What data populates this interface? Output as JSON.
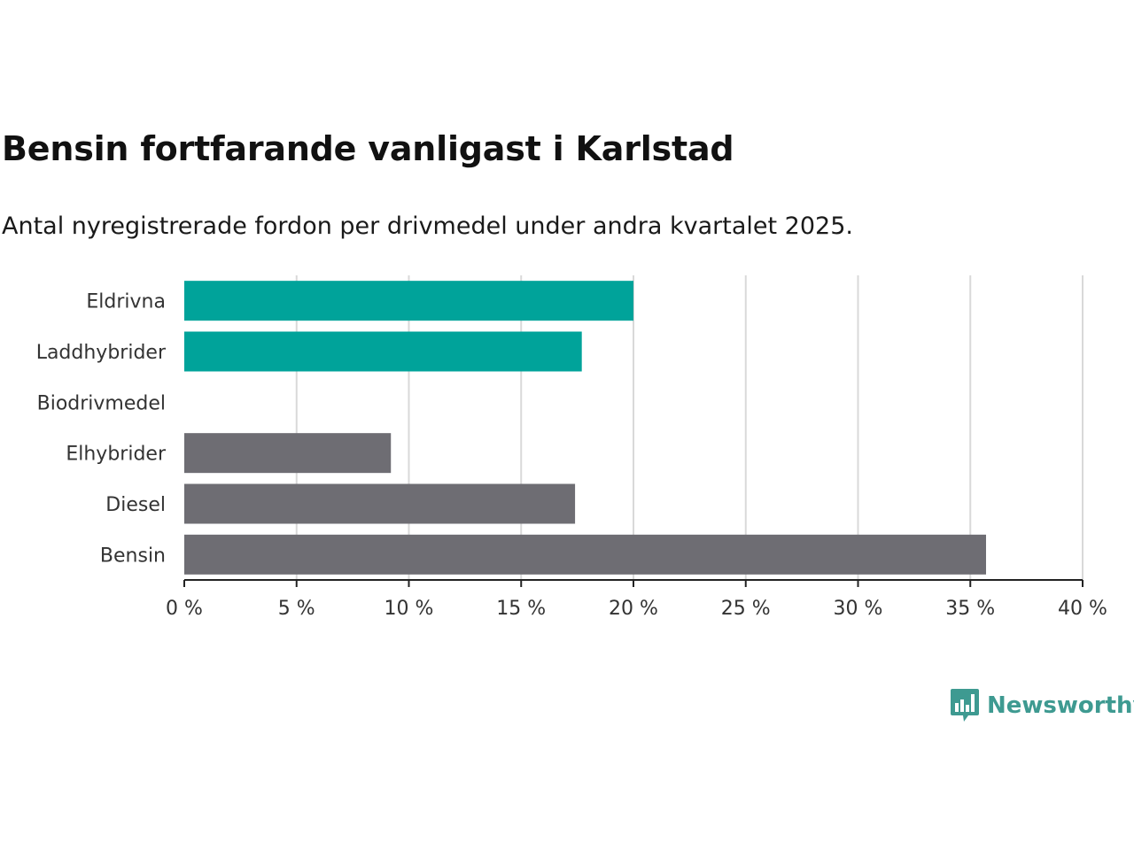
{
  "title": "Bensin fortfarande vanligast i Karlstad",
  "subtitle": "Antal nyregistrerade fordon per drivmedel under andra kvartalet 2025.",
  "brand": {
    "name": "Newsworthy",
    "icon": "newsworthy-logo-icon"
  },
  "colors": {
    "highlight": "#00a39a",
    "default": "#6e6d73",
    "grid": "#d9d9d9",
    "axis": "#222222"
  },
  "chart_data": {
    "type": "bar",
    "orientation": "horizontal",
    "categories": [
      "Eldrivna",
      "Laddhybrider",
      "Biodrivmedel",
      "Elhybrider",
      "Diesel",
      "Bensin"
    ],
    "values": [
      20.0,
      17.7,
      0,
      9.2,
      17.4,
      35.7
    ],
    "highlighted": [
      "Eldrivna",
      "Laddhybrider"
    ],
    "xlim": [
      0,
      40
    ],
    "xticks": [
      0,
      5,
      10,
      15,
      20,
      25,
      30,
      35,
      40
    ],
    "xtick_labels": [
      "0 %",
      "5 %",
      "10 %",
      "15 %",
      "20 %",
      "25 %",
      "30 %",
      "35 %",
      "40 %"
    ],
    "grid": true
  }
}
